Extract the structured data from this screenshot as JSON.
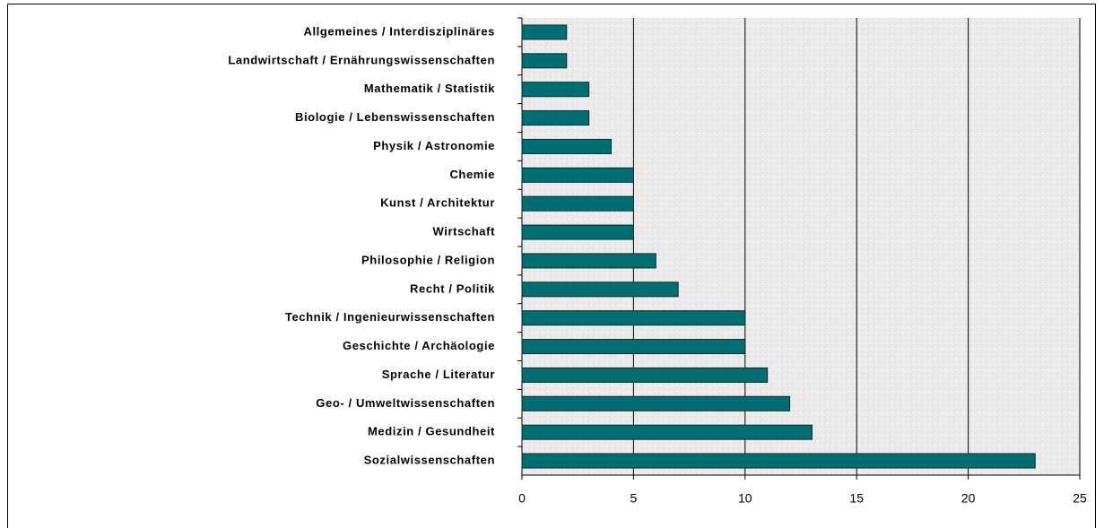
{
  "chart_data": {
    "type": "bar",
    "orientation": "horizontal",
    "categories": [
      "Allgemeines / Interdisziplinäres",
      "Landwirtschaft / Ernährungswissenschaften",
      "Mathematik / Statistik",
      "Biologie / Lebenswissenschaften",
      "Physik / Astronomie",
      "Chemie",
      "Kunst / Architektur",
      "Wirtschaft",
      "Philosophie / Religion",
      "Recht / Politik",
      "Technik / Ingenieurwissenschaften",
      "Geschichte / Archäologie",
      "Sprache / Literatur",
      "Geo- / Umweltwissenschaften",
      "Medizin / Gesundheit",
      "Sozialwissenschaften"
    ],
    "values": [
      2,
      2,
      3,
      3,
      4,
      5,
      5,
      5,
      6,
      7,
      10,
      10,
      11,
      12,
      13,
      23
    ],
    "color": "#006f73",
    "xlim": [
      0,
      25
    ],
    "xticks": [
      0,
      5,
      10,
      15,
      20,
      25
    ],
    "grid": true
  }
}
